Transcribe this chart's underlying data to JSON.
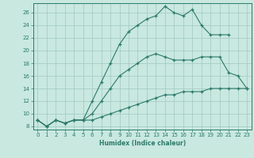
{
  "xlabel": "Humidex (Indice chaleur)",
  "bg_color": "#c8e8e0",
  "line_color": "#2d7a6a",
  "grid_color": "#a0c8c0",
  "xlim": [
    -0.5,
    23.5
  ],
  "ylim": [
    7.5,
    27.5
  ],
  "xticks": [
    0,
    1,
    2,
    3,
    4,
    5,
    6,
    7,
    8,
    9,
    10,
    11,
    12,
    13,
    14,
    15,
    16,
    17,
    18,
    19,
    20,
    21,
    22,
    23
  ],
  "yticks": [
    8,
    10,
    12,
    14,
    16,
    18,
    20,
    22,
    24,
    26
  ],
  "line1_x": [
    0,
    1,
    2,
    3,
    4,
    5,
    6,
    7,
    8,
    9,
    10,
    11,
    12,
    13,
    14,
    15,
    16,
    17,
    18,
    19,
    20,
    21,
    22,
    23
  ],
  "line1_y": [
    9,
    8,
    9,
    8.5,
    9,
    9,
    9,
    9.5,
    10,
    10.5,
    11,
    11.5,
    12,
    12.5,
    13,
    13,
    13.5,
    13.5,
    13.5,
    14,
    14,
    14,
    14,
    14
  ],
  "line2_x": [
    0,
    1,
    2,
    3,
    4,
    5,
    6,
    7,
    8,
    9,
    10,
    11,
    12,
    13,
    14,
    15,
    16,
    17,
    18,
    19,
    20,
    21,
    22,
    23
  ],
  "line2_y": [
    9,
    8,
    9,
    8.5,
    9,
    9,
    10,
    12,
    14,
    16,
    17,
    18,
    19,
    19.5,
    19,
    18.5,
    18.5,
    18.5,
    19,
    19,
    19,
    16.5,
    16,
    14
  ],
  "line3_x": [
    0,
    1,
    2,
    3,
    4,
    5,
    6,
    7,
    8,
    9,
    10,
    11,
    12,
    13,
    14,
    15,
    16,
    17,
    18,
    19,
    20,
    21,
    22,
    23
  ],
  "line3_y": [
    9,
    8,
    9,
    8.5,
    9,
    9,
    12,
    15,
    18,
    21,
    23,
    24,
    25,
    25.5,
    27,
    26,
    25.5,
    26.5,
    24,
    22.5,
    22.5,
    22.5,
    null,
    null
  ]
}
